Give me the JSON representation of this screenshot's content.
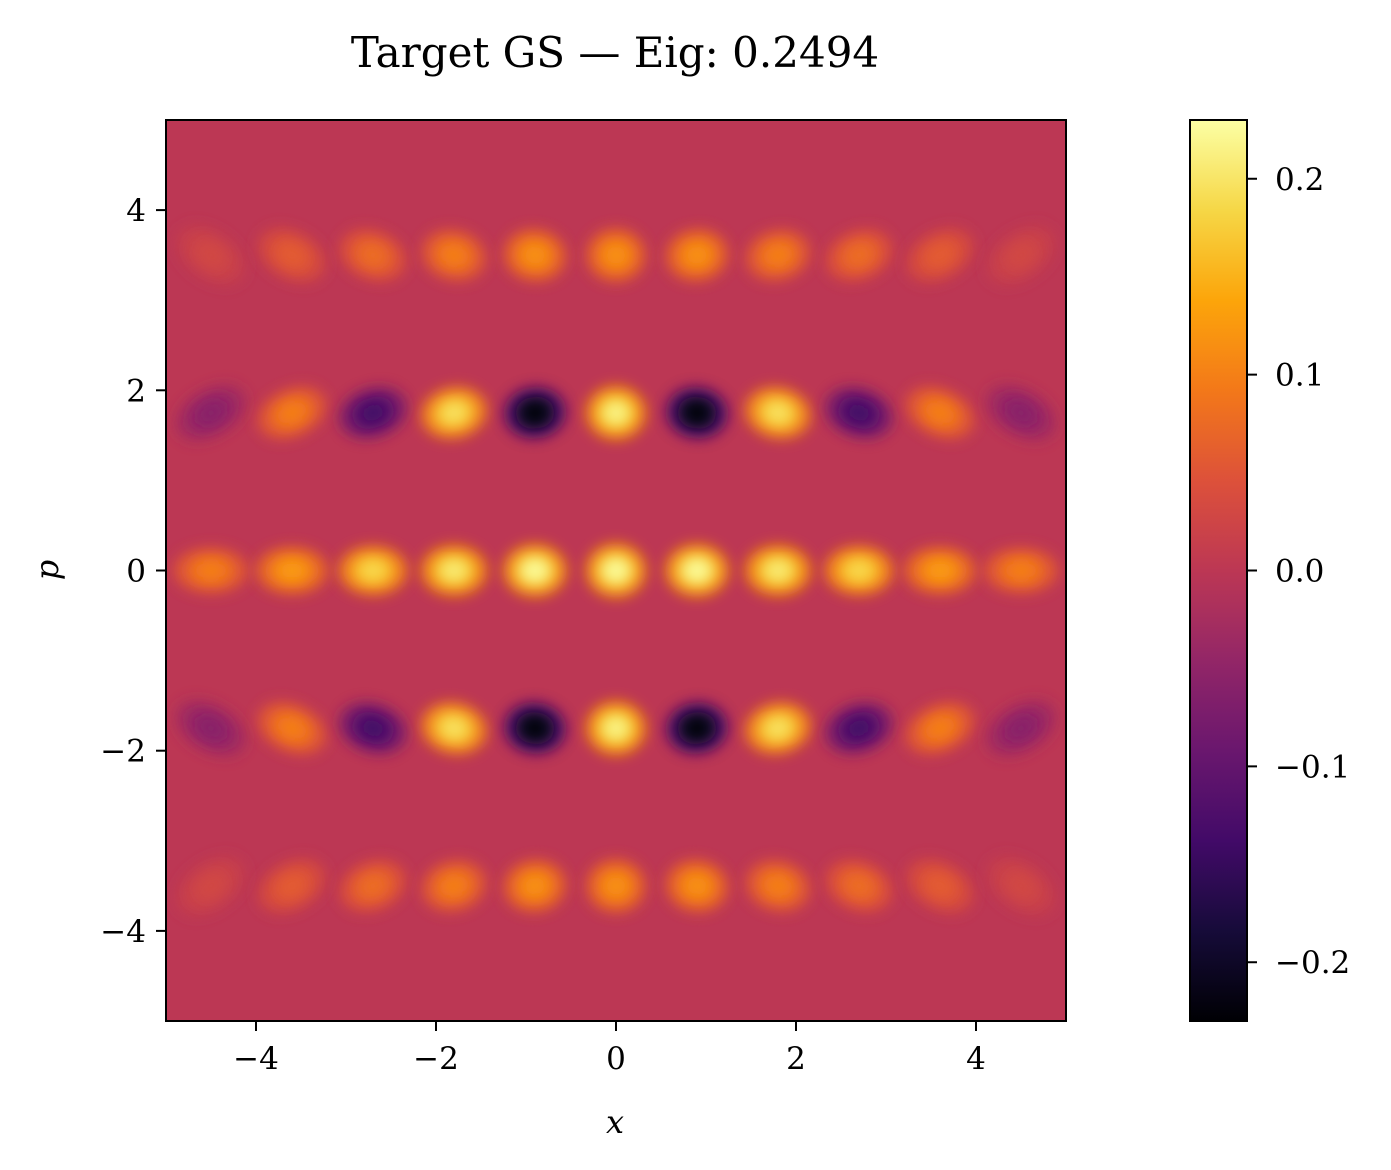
{
  "chart_data": {
    "type": "heatmap",
    "title": "Target GS — Eig: 0.2494",
    "xlabel": "x",
    "ylabel": "p",
    "xlim": [
      -5,
      5
    ],
    "ylim": [
      -5,
      5
    ],
    "x_ticks": [
      -4,
      -2,
      0,
      2,
      4
    ],
    "y_ticks": [
      -4,
      -2,
      0,
      2,
      4
    ],
    "x_tick_labels": [
      "−4",
      "−2",
      "0",
      "2",
      "4"
    ],
    "y_tick_labels": [
      "−4",
      "−2",
      "0",
      "2",
      "4"
    ],
    "grid": false,
    "colormap": "inferno",
    "background_value": 0.0,
    "colorbar": {
      "range": [
        -0.23,
        0.23
      ],
      "ticks": [
        0.2,
        0.1,
        0.0,
        -0.1,
        -0.2
      ],
      "tick_labels": [
        "0.2",
        "0.1",
        "0.0",
        "−0.1",
        "−0.2"
      ],
      "placement": "right"
    },
    "blob_columns_x": [
      -4.5,
      -3.6,
      -2.7,
      -1.8,
      -0.9,
      0.0,
      0.9,
      1.8,
      2.7,
      3.6,
      4.5
    ],
    "rows": [
      {
        "p": 3.5,
        "values": [
          0.03,
          0.06,
          0.08,
          0.1,
          0.12,
          0.12,
          0.12,
          0.1,
          0.08,
          0.06,
          0.03
        ]
      },
      {
        "p": 1.75,
        "values": [
          -0.06,
          0.1,
          -0.14,
          0.2,
          -0.23,
          0.22,
          -0.23,
          0.2,
          -0.14,
          0.1,
          -0.06
        ]
      },
      {
        "p": 0.0,
        "values": [
          0.1,
          0.13,
          0.19,
          0.21,
          0.23,
          0.23,
          0.23,
          0.21,
          0.19,
          0.13,
          0.1
        ]
      },
      {
        "p": -1.75,
        "values": [
          -0.06,
          0.1,
          -0.14,
          0.2,
          -0.23,
          0.22,
          -0.23,
          0.2,
          -0.14,
          0.1,
          -0.06
        ]
      },
      {
        "p": -3.5,
        "values": [
          0.03,
          0.06,
          0.08,
          0.1,
          0.12,
          0.12,
          0.12,
          0.1,
          0.08,
          0.06,
          0.03
        ]
      }
    ]
  }
}
